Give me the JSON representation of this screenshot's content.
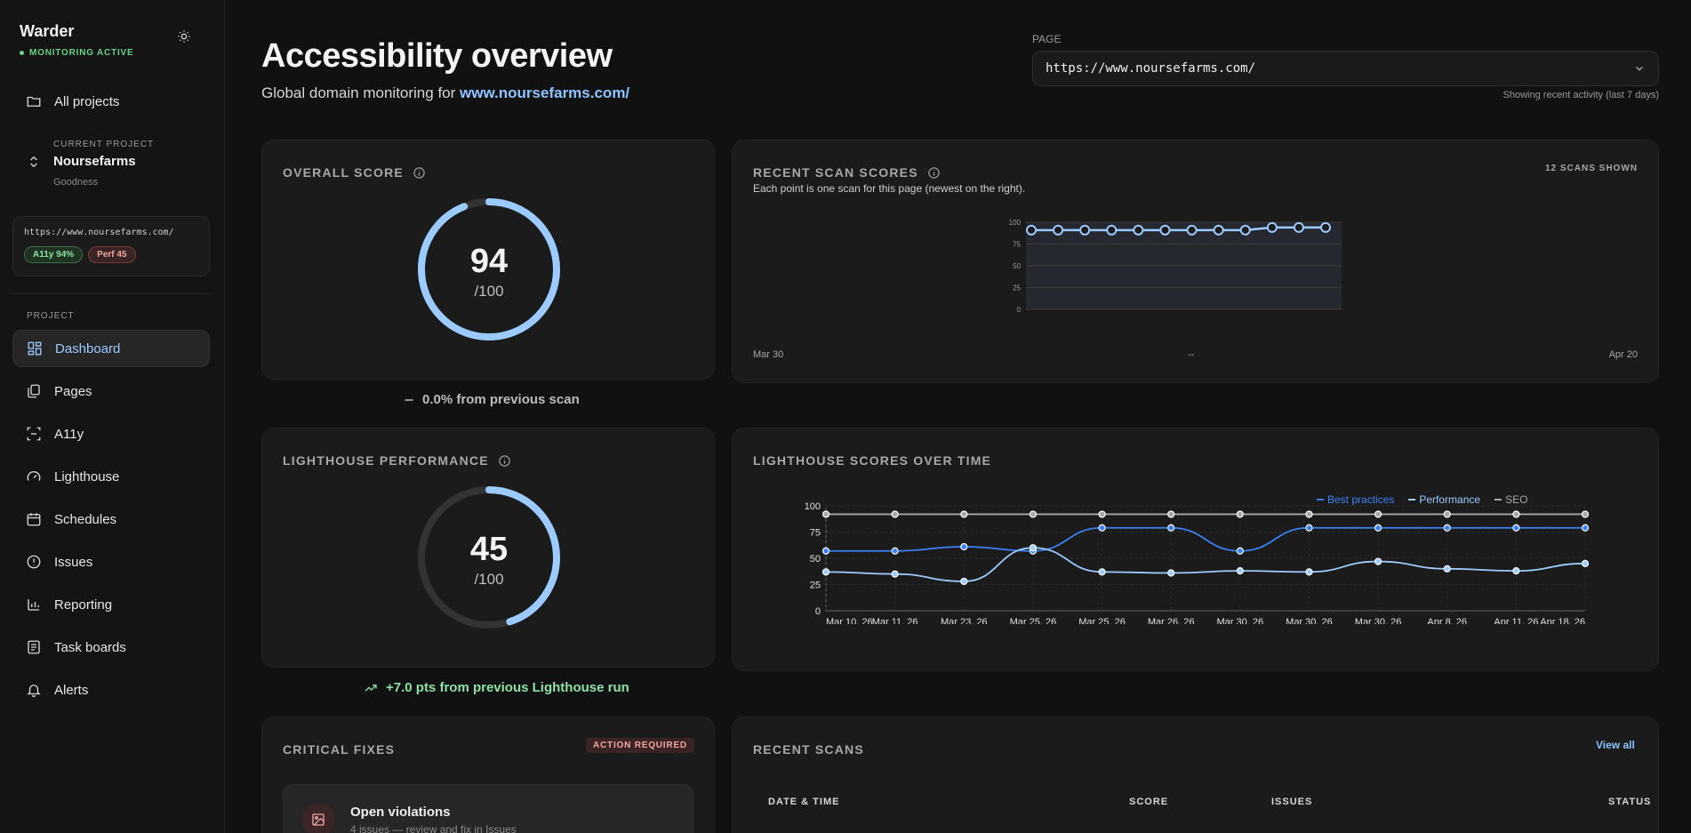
{
  "sidebar": {
    "brand": "Warder",
    "status": "MONITORING ACTIVE",
    "all_projects": "All projects",
    "current_project_label": "CURRENT PROJECT",
    "current_project_name": "Noursefarms",
    "current_project_sub": "Goodness",
    "url": "https://www.noursefarms.com/",
    "badges": [
      "A11y 94%",
      "Perf 45"
    ],
    "section_label": "PROJECT",
    "items": [
      {
        "label": "Dashboard",
        "icon": "dashboard-icon"
      },
      {
        "label": "Pages",
        "icon": "pages-icon"
      },
      {
        "label": "A11y",
        "icon": "a11y-icon"
      },
      {
        "label": "Lighthouse",
        "icon": "gauge-icon"
      },
      {
        "label": "Schedules",
        "icon": "calendar-icon"
      },
      {
        "label": "Issues",
        "icon": "alert-circle-icon"
      },
      {
        "label": "Reporting",
        "icon": "bar-chart-icon"
      },
      {
        "label": "Task boards",
        "icon": "board-icon"
      },
      {
        "label": "Alerts",
        "icon": "bell-icon"
      }
    ]
  },
  "header": {
    "title": "Accessibility overview",
    "subtitle_prefix": "Global domain monitoring for ",
    "subtitle_link": "www.noursefarms.com/",
    "page_label": "PAGE",
    "page_value": "https://www.noursefarms.com/",
    "recent_note": "Showing recent activity (last 7 days)"
  },
  "overall": {
    "title": "OVERALL SCORE",
    "score": "94",
    "denominator": "/100",
    "score_value": 94,
    "delta": "0.0% from previous scan"
  },
  "scan_scores": {
    "title": "RECENT SCAN SCORES",
    "subtitle": "Each point is one scan for this page (newest on the right).",
    "count": "12 SCANS SHOWN",
    "x_start": "Mar 30",
    "x_mid": "--",
    "x_end": "Apr 20"
  },
  "lighthouse": {
    "title": "LIGHTHOUSE PERFORMANCE",
    "score": "45",
    "denominator": "/100",
    "score_value": 45,
    "delta": "+7.0 pts from previous Lighthouse run"
  },
  "lh_time": {
    "title": "LIGHTHOUSE SCORES OVER TIME",
    "legend": [
      "Best practices",
      "Performance",
      "SEO"
    ]
  },
  "critical": {
    "title": "CRITICAL FIXES",
    "tag": "ACTION REQUIRED",
    "item_title": "Open violations",
    "item_sub": "4 issues — review and fix in Issues"
  },
  "recent_scans": {
    "title": "RECENT SCANS",
    "view_all": "View all",
    "columns": [
      "DATE & TIME",
      "SCORE",
      "ISSUES",
      "STATUS"
    ]
  },
  "colors": {
    "accent": "#8ec4ff",
    "green": "#6ad38a",
    "best_practices": "#3b82f6",
    "performance": "#9ccbff",
    "seo": "#a8a8a8"
  },
  "chart_data": [
    {
      "type": "line",
      "title": "RECENT SCAN SCORES",
      "x": [
        "Mar 30",
        "",
        "",
        "",
        "",
        "",
        "",
        "",
        "",
        "",
        "",
        "Apr 20"
      ],
      "series": [
        {
          "values": [
            91,
            91,
            91,
            91,
            91,
            91,
            91,
            91,
            91,
            94,
            94,
            94
          ]
        }
      ],
      "ylim": [
        0,
        100
      ],
      "yticks": [
        0,
        25,
        50,
        75,
        100
      ],
      "grid": true
    },
    {
      "type": "line",
      "title": "LIGHTHOUSE SCORES OVER TIME",
      "categories": [
        "Mar 10, 26",
        "Mar 11, 26",
        "Mar 23, 26",
        "Mar 25, 26",
        "Mar 25, 26",
        "Mar 26, 26",
        "Mar 30, 26",
        "Mar 30, 26",
        "Mar 30, 26",
        "Apr 8, 26",
        "Apr 11, 26",
        "Apr 18, 26"
      ],
      "series": [
        {
          "name": "Best practices",
          "values": [
            57,
            57,
            61,
            57,
            79,
            79,
            57,
            79,
            79,
            79,
            79,
            79
          ]
        },
        {
          "name": "Performance",
          "values": [
            37,
            35,
            28,
            60,
            37,
            36,
            38,
            37,
            47,
            40,
            38,
            45
          ]
        },
        {
          "name": "SEO",
          "values": [
            92,
            92,
            92,
            92,
            92,
            92,
            92,
            92,
            92,
            92,
            92,
            92
          ]
        }
      ],
      "ylim": [
        0,
        100
      ],
      "yticks": [
        0,
        25,
        50,
        75,
        100
      ],
      "grid": true,
      "legend": "top-center"
    }
  ]
}
